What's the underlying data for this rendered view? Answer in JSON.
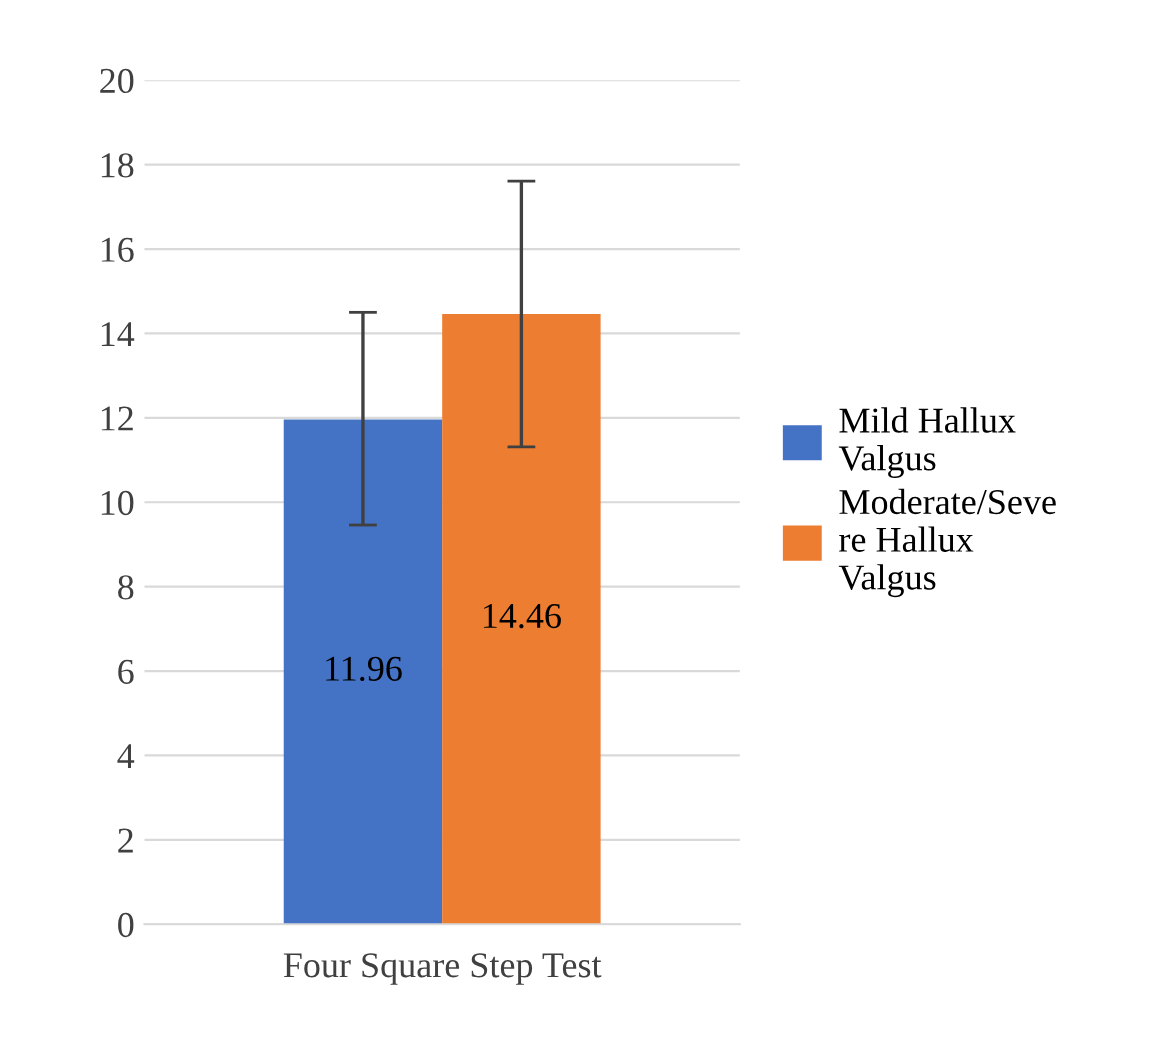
{
  "chart_data": {
    "type": "bar",
    "categories": [
      "Four Square Step Test"
    ],
    "series": [
      {
        "name": "Mild Hallux Valgus",
        "color": "#4472c4",
        "values": [
          11.96
        ],
        "errors": [
          [
            9.46,
            14.5
          ]
        ]
      },
      {
        "name": "Moderate/Severe Hallux Valgus",
        "color": "#ed7d31",
        "values": [
          14.46
        ],
        "errors": [
          [
            11.31,
            17.61
          ]
        ]
      }
    ],
    "ylim": [
      0,
      20
    ],
    "yticks": [
      0,
      2,
      4,
      6,
      8,
      10,
      12,
      14,
      16,
      18,
      20
    ],
    "grid": "y",
    "legend": "right",
    "data_labels": true
  }
}
